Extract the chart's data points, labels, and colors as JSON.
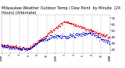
{
  "title": "Milwaukee Weather Outdoor Temp / Dew Point  by Minute  (24 Hours) (Alternate)",
  "title_fontsize": 3.5,
  "bg_color": "#ffffff",
  "plot_bg_color": "#ffffff",
  "text_color": "#000000",
  "grid_color": "#888888",
  "red_color": "#dd0000",
  "blue_color": "#0000cc",
  "ylim": [
    15,
    75
  ],
  "yticks": [
    20,
    30,
    40,
    50,
    60,
    70
  ],
  "xlim": [
    0,
    1440
  ],
  "xtick_labels": [
    "12AM",
    "2",
    "4",
    "6",
    "8",
    "10",
    "12PM",
    "2",
    "4",
    "6",
    "8",
    "10",
    "12AM"
  ],
  "xtick_positions": [
    0,
    120,
    240,
    360,
    480,
    600,
    720,
    840,
    960,
    1080,
    1200,
    1320,
    1440
  ]
}
